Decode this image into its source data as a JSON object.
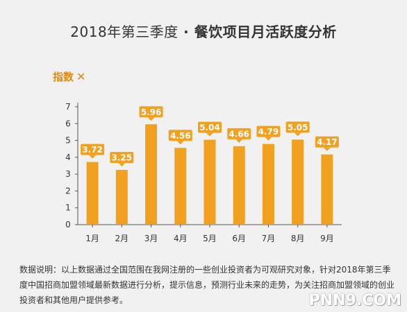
{
  "title": {
    "prefix": "2018年第三季度",
    "separator": " · ",
    "main": "餐饮项目月活跃度分析"
  },
  "legend": {
    "label": "指数",
    "icon": "utensils-icon"
  },
  "colors": {
    "bar": "#f2a020",
    "label_bg": "#f2a020",
    "label_text": "#ffffff",
    "axis": "#555555"
  },
  "chart_data": {
    "type": "bar",
    "categories": [
      "1月",
      "2月",
      "3月",
      "4月",
      "5月",
      "6月",
      "7月",
      "8月",
      "9月"
    ],
    "values": [
      3.72,
      3.25,
      5.96,
      4.56,
      5.04,
      4.66,
      4.79,
      5.05,
      4.17
    ],
    "ylabel": "指数",
    "ylim": [
      0,
      7
    ],
    "yticks": [
      0,
      1,
      2,
      3,
      4,
      5,
      6,
      7
    ],
    "grid": false
  },
  "note": "数据说明：以上数据通过全国范围在我网注册的一些创业投资者为可观研究对象，针对2018年第三季度中国招商加盟领域最新数据进行分析，提示信息，预测行业未来的走势，为关注招商加盟领域的创业投资者和其他用户提供参考。",
  "watermark": "PNN9.COM"
}
